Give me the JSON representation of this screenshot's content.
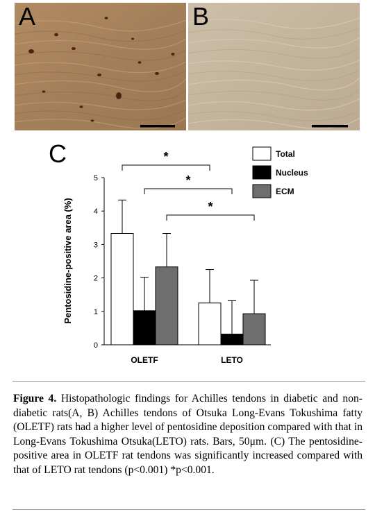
{
  "panels": {
    "a": {
      "label": "A"
    },
    "b": {
      "label": "B"
    }
  },
  "chart_panel_label": "C",
  "chart_data": {
    "type": "bar",
    "title": "",
    "xlabel": "",
    "ylabel": "Pentosidine-positive area (%)",
    "ylim": [
      0,
      5
    ],
    "yticks": [
      0,
      1,
      2,
      3,
      4,
      5
    ],
    "categories": [
      "OLETF",
      "LETO"
    ],
    "series": [
      {
        "name": "Total",
        "color": "#ffffff",
        "values": [
          3.33,
          1.25
        ],
        "error": [
          1.0,
          1.0
        ]
      },
      {
        "name": "Nucleus",
        "color": "#000000",
        "values": [
          1.02,
          0.32
        ],
        "error": [
          1.0,
          1.0
        ]
      },
      {
        "name": "ECM",
        "color": "#6e6e6e",
        "values": [
          2.33,
          0.93
        ],
        "error": [
          1.0,
          1.0
        ]
      }
    ],
    "legend_position": "top-right",
    "grid": false,
    "annotations": [
      {
        "label": "*",
        "from": [
          "OLETF",
          "Total"
        ],
        "to": [
          "LETO",
          "Total"
        ]
      },
      {
        "label": "*",
        "from": [
          "OLETF",
          "Nucleus"
        ],
        "to": [
          "LETO",
          "Nucleus"
        ]
      },
      {
        "label": "*",
        "from": [
          "OLETF",
          "ECM"
        ],
        "to": [
          "LETO",
          "ECM"
        ]
      }
    ]
  },
  "caption": {
    "figure_label": "Figure 4.",
    "text": " Histopathologic findings for Achilles tendons in diabetic and non-diabetic rats(A, B) Achilles tendons of Otsuka Long-Evans Tokushima fatty (OLETF) rats had a higher level of pentosidine deposition compared with that in Long-Evans Tokushima Otsuka(LETO) rats. Bars, 50μm. (C) The pentosidine-positive area in OLETF rat tendons was significantly increased compared with that of LETO rat tendons (p<0.001) *p<0.001."
  },
  "colors": {
    "tissue_a": "#a9855e",
    "tissue_b": "#c8b8a2",
    "stain": "#4a2410",
    "scale_bar": "#000000"
  }
}
